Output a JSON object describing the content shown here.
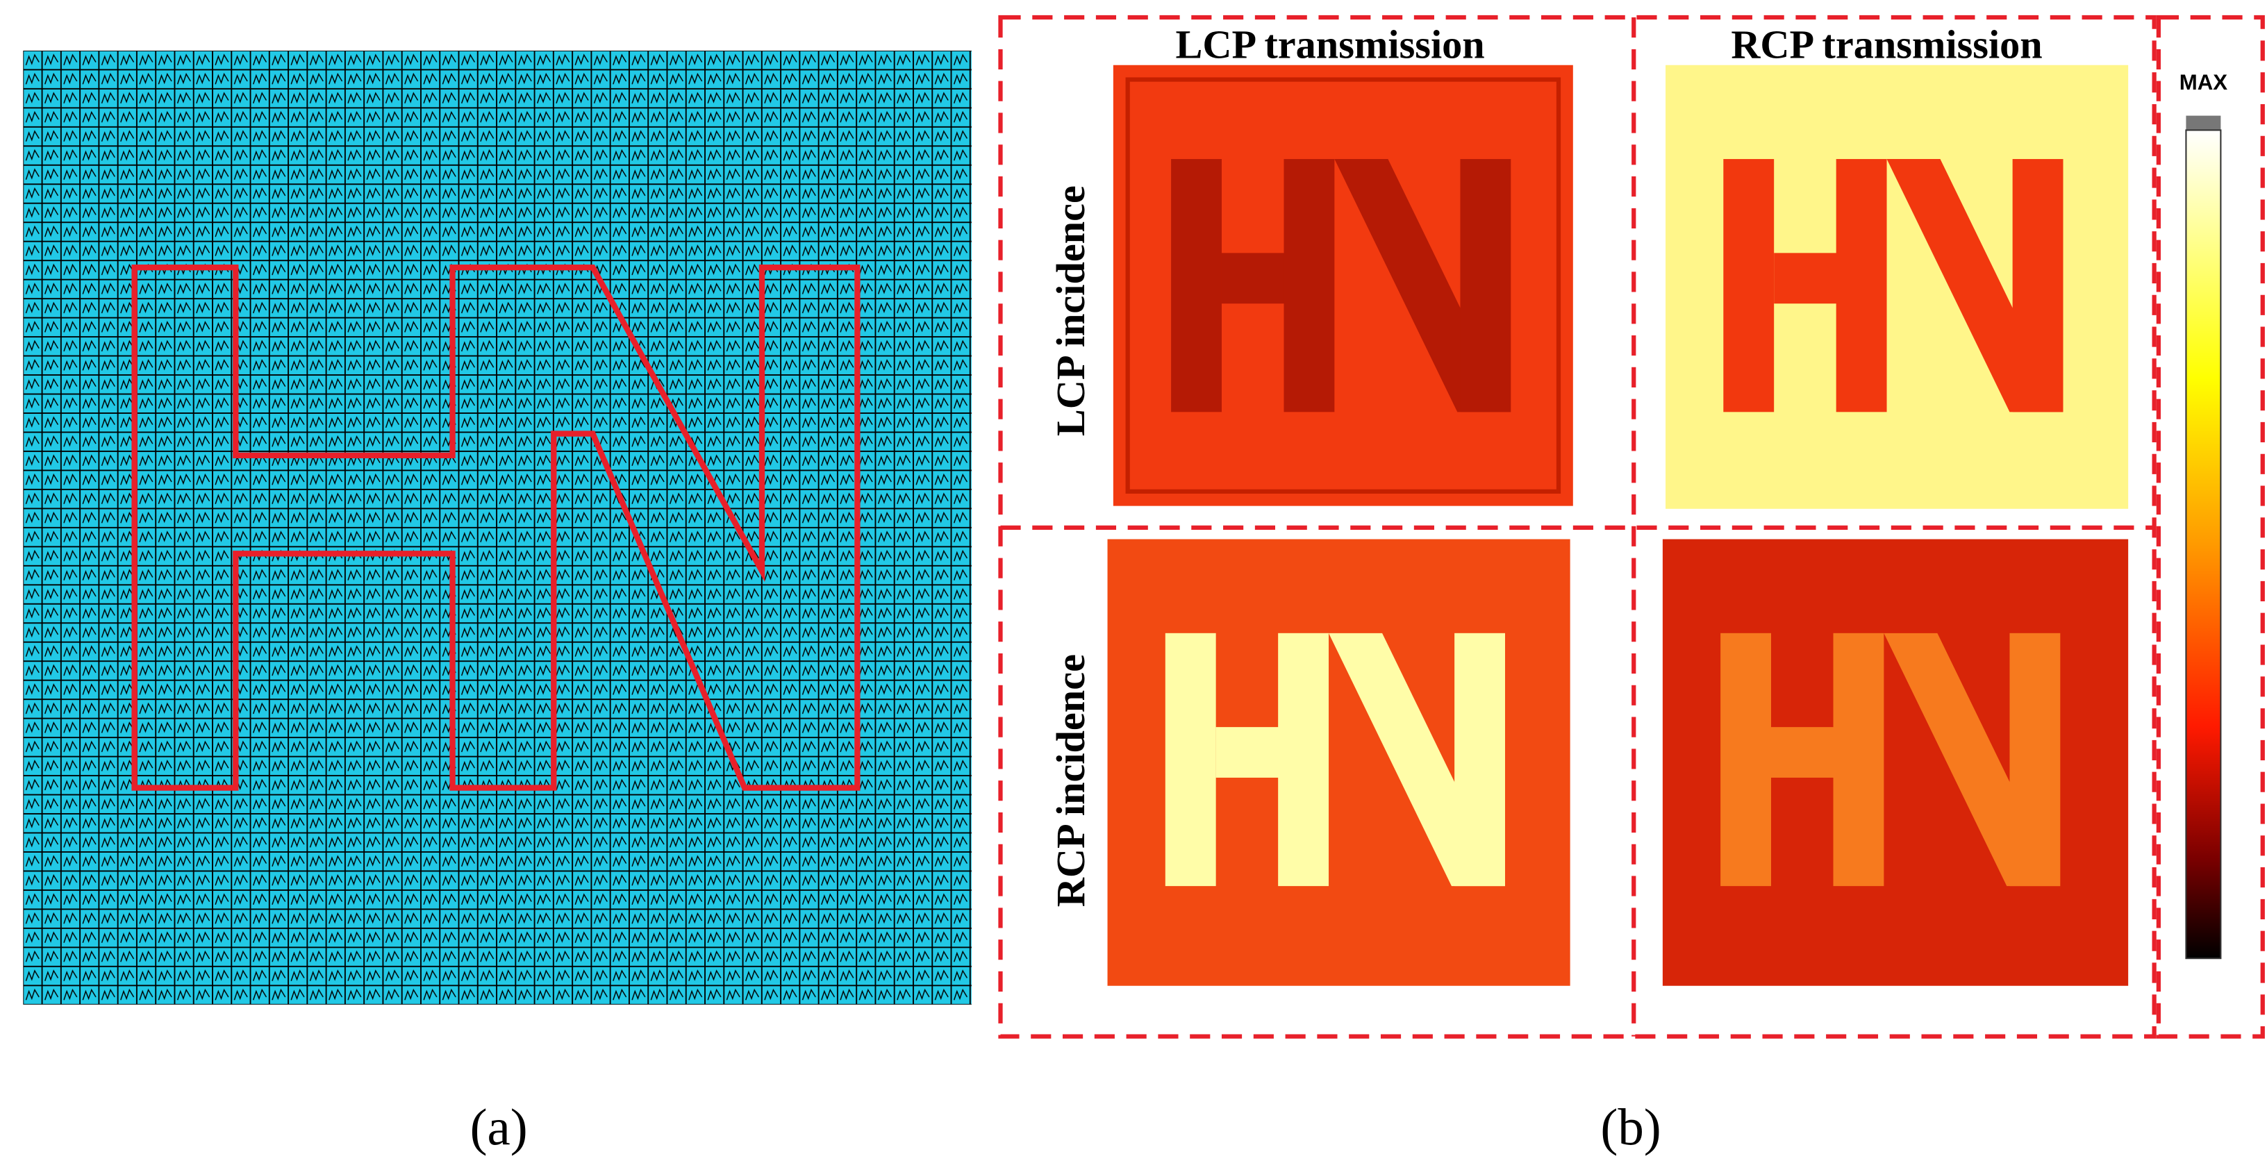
{
  "panel_a": {
    "label": "(a)"
  },
  "panel_b": {
    "label": "(b)",
    "columns": [
      "LCP transmission",
      "RCP transmission"
    ],
    "rows": [
      "LCP incidence",
      "RCP incidence"
    ],
    "colorbar": {
      "label": "MAX"
    }
  }
}
